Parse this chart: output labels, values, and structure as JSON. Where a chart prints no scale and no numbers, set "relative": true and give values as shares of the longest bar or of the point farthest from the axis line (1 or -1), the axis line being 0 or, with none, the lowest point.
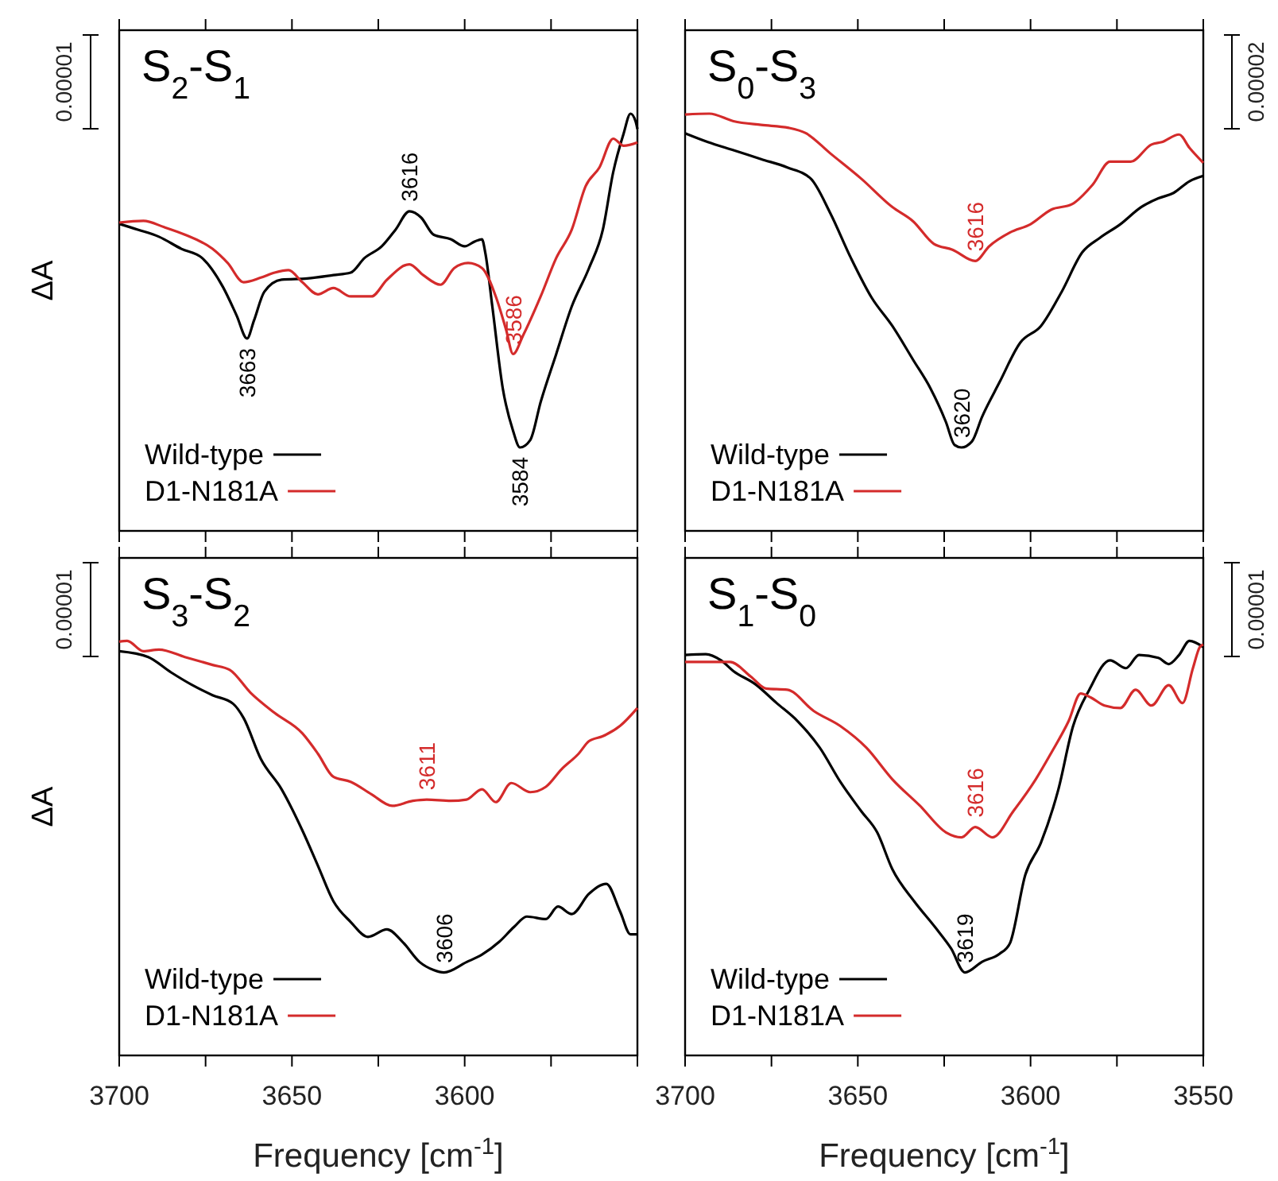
{
  "chart_data": [
    {
      "type": "line",
      "title": "S$_{2}$-S$_{1}$",
      "ylabel": "ΔA",
      "relative": true,
      "xlim": [
        3700,
        3550
      ],
      "xticks": [
        3700,
        {
          "value": 3675,
          "label": null
        },
        3650,
        {
          "value": 3625,
          "label": null
        },
        3600,
        {
          "value": 3575,
          "label": null
        },
        {
          "value": 3550,
          "label": null
        }
      ],
      "tick_labels": false,
      "legend": "bottom left",
      "series": [
        {
          "name": "Wild-type",
          "color": "#000000",
          "x": [
            3700,
            3694.6,
            3688.5,
            3682,
            3676,
            3670,
            3666,
            3663,
            3661,
            3658,
            3653,
            3645.6,
            3638,
            3633,
            3629,
            3624,
            3620,
            3616,
            3612.6,
            3609,
            3604,
            3600,
            3597,
            3595,
            3594,
            3592,
            3589,
            3586,
            3584,
            3581,
            3578,
            3573.5,
            3569,
            3564,
            3560,
            3557,
            3554,
            3552,
            3550.5,
            3550
          ],
          "values": [
            0.736,
            0.722,
            0.705,
            0.676,
            0.654,
            0.585,
            0.516,
            0.461,
            0.504,
            0.573,
            0.602,
            0.605,
            0.613,
            0.619,
            0.654,
            0.682,
            0.722,
            0.766,
            0.751,
            0.71,
            0.699,
            0.682,
            0.694,
            0.699,
            0.665,
            0.538,
            0.343,
            0.24,
            0.2,
            0.218,
            0.309,
            0.424,
            0.538,
            0.63,
            0.722,
            0.86,
            0.952,
            1,
            0.981,
            0.963
          ]
        },
        {
          "name": "D1-N181A",
          "color": "#d42b2b",
          "x": [
            3700,
            3693,
            3687,
            3681,
            3673,
            3668.6,
            3664,
            3659,
            3655,
            3651,
            3647,
            3642.5,
            3638,
            3633,
            3627,
            3622.5,
            3616,
            3612,
            3607,
            3603,
            3599,
            3595,
            3591,
            3588,
            3586,
            3583,
            3578,
            3573.5,
            3569,
            3565,
            3561,
            3557,
            3554,
            3550
          ],
          "values": [
            0.739,
            0.743,
            0.728,
            0.71,
            0.676,
            0.642,
            0.596,
            0.607,
            0.619,
            0.625,
            0.596,
            0.567,
            0.582,
            0.562,
            0.562,
            0.602,
            0.639,
            0.613,
            0.59,
            0.63,
            0.642,
            0.63,
            0.562,
            0.482,
            0.424,
            0.47,
            0.562,
            0.654,
            0.722,
            0.826,
            0.871,
            0.94,
            0.923,
            0.931
          ]
        }
      ],
      "annotations": [
        "0.00001",
        {
          "text": "3663",
          "x": 3663,
          "y": 0.461
        },
        {
          "text": "3616",
          "x": 3616,
          "y": 0.766
        },
        {
          "text": "3586",
          "x": 3586,
          "y": 0.424
        },
        {
          "text": "3584",
          "x": 3584,
          "y": 0.2
        }
      ]
    },
    {
      "type": "line",
      "title": "S$_{0}$-S$_{3}$",
      "relative": true,
      "xlim": [
        3700,
        3550
      ],
      "xticks": [
        3700,
        {
          "value": 3675,
          "label": null
        },
        3650,
        {
          "value": 3625,
          "label": null
        },
        3600,
        {
          "value": 3575,
          "label": null
        },
        3550
      ],
      "tick_labels": false,
      "legend": "bottom left",
      "series": [
        {
          "name": "Wild-type",
          "color": "#000000",
          "x": [
            3700,
            3693.4,
            3685.8,
            3678,
            3670.4,
            3663.6,
            3658,
            3652,
            3646,
            3640,
            3634,
            3629,
            3624.5,
            3622,
            3620,
            3617,
            3614,
            3609,
            3603,
            3597,
            3591,
            3585,
            3580,
            3574,
            3568,
            3563,
            3558.6,
            3554,
            3550
          ],
          "values": [
            0.953,
            0.932,
            0.912,
            0.891,
            0.871,
            0.844,
            0.762,
            0.654,
            0.559,
            0.491,
            0.41,
            0.342,
            0.261,
            0.206,
            0.2,
            0.214,
            0.274,
            0.356,
            0.451,
            0.491,
            0.573,
            0.668,
            0.702,
            0.735,
            0.776,
            0.797,
            0.81,
            0.838,
            0.851
          ]
        },
        {
          "name": "D1-N181A",
          "color": "#d42b2b",
          "x": [
            3700,
            3693,
            3686,
            3678,
            3670,
            3665,
            3658,
            3649,
            3640,
            3634,
            3628,
            3622.6,
            3616,
            3612,
            3606,
            3600,
            3594,
            3588,
            3582,
            3577,
            3571,
            3565,
            3562,
            3557,
            3554,
            3550
          ],
          "values": [
            0.998,
            1,
            0.982,
            0.973,
            0.966,
            0.953,
            0.905,
            0.844,
            0.776,
            0.742,
            0.688,
            0.674,
            0.647,
            0.682,
            0.715,
            0.735,
            0.77,
            0.783,
            0.83,
            0.885,
            0.885,
            0.926,
            0.932,
            0.95,
            0.918,
            0.882
          ]
        }
      ],
      "annotations": [
        "0.00002",
        {
          "text": "3616",
          "x": 3616,
          "y": 0.647
        },
        {
          "text": "3620",
          "x": 3620,
          "y": 0.2
        }
      ]
    },
    {
      "type": "line",
      "title": "S$_{3}$-S$_{2}$",
      "ylabel": "ΔA",
      "xlabel": "Frequency [cm$^{-1}$]",
      "relative": true,
      "xlim": [
        3700,
        3550
      ],
      "xticks": [
        3700,
        {
          "value": 3675,
          "label": null
        },
        3650,
        {
          "value": 3625,
          "label": null
        },
        3600,
        {
          "value": 3575,
          "label": null
        },
        {
          "value": 3550,
          "label": null
        }
      ],
      "tick_labels": "x",
      "legend": "bottom left",
      "series": [
        {
          "name": "Wild-type",
          "color": "#000000",
          "x": [
            3700,
            3691.6,
            3685,
            3679,
            3673,
            3667,
            3664,
            3659,
            3653,
            3647,
            3642.5,
            3638,
            3633,
            3628,
            3622.5,
            3618,
            3613,
            3609,
            3606,
            3599.5,
            3595,
            3590,
            3585.7,
            3582,
            3576.5,
            3573,
            3569,
            3564,
            3559,
            3555,
            3552,
            3550
          ],
          "values": [
            0.975,
            0.961,
            0.924,
            0.894,
            0.869,
            0.848,
            0.814,
            0.715,
            0.642,
            0.543,
            0.458,
            0.372,
            0.322,
            0.286,
            0.304,
            0.274,
            0.225,
            0.206,
            0.2,
            0.225,
            0.243,
            0.274,
            0.31,
            0.335,
            0.329,
            0.359,
            0.341,
            0.39,
            0.414,
            0.347,
            0.292,
            0.292
          ]
        },
        {
          "name": "D1-N181A",
          "color": "#d42b2b",
          "x": [
            3700,
            3697.7,
            3693,
            3688.5,
            3681,
            3673,
            3668,
            3662,
            3655,
            3647,
            3642.5,
            3638,
            3633,
            3627,
            3621,
            3615,
            3611,
            3604,
            3599.5,
            3595,
            3591,
            3586.5,
            3581,
            3576.5,
            3572,
            3567,
            3564,
            3560,
            3555,
            3550
          ],
          "values": [
            0.998,
            1,
            0.975,
            0.979,
            0.961,
            0.942,
            0.93,
            0.875,
            0.826,
            0.777,
            0.728,
            0.672,
            0.66,
            0.63,
            0.602,
            0.614,
            0.617,
            0.614,
            0.617,
            0.642,
            0.611,
            0.657,
            0.635,
            0.648,
            0.69,
            0.728,
            0.758,
            0.77,
            0.795,
            0.838
          ]
        }
      ],
      "annotations": [
        "0.00001",
        {
          "text": "3611",
          "x": 3611,
          "y": 0.617
        },
        {
          "text": "3606",
          "x": 3606,
          "y": 0.2
        }
      ]
    },
    {
      "type": "line",
      "title": "S$_{1}$-S$_{0}$",
      "xlabel": "Frequency [cm$^{-1}$]",
      "relative": true,
      "xlim": [
        3700,
        3550
      ],
      "xticks": [
        3700,
        {
          "value": 3675,
          "label": null
        },
        3650,
        {
          "value": 3625,
          "label": null
        },
        3600,
        {
          "value": 3575,
          "label": null
        },
        3550
      ],
      "tick_labels": "x",
      "legend": "bottom left",
      "series": [
        {
          "name": "Wild-type",
          "color": "#000000",
          "x": [
            3700,
            3694,
            3689.6,
            3686,
            3679.6,
            3673.5,
            3667.4,
            3661,
            3655,
            3649,
            3644.4,
            3640,
            3633.7,
            3627.6,
            3623,
            3619,
            3614,
            3609,
            3606,
            3601.5,
            3597,
            3592,
            3587.7,
            3583,
            3577,
            3572.4,
            3568.6,
            3563,
            3560,
            3557,
            3554,
            3550
          ],
          "values": [
            0.966,
            0.968,
            0.953,
            0.927,
            0.895,
            0.85,
            0.806,
            0.742,
            0.659,
            0.589,
            0.538,
            0.449,
            0.372,
            0.309,
            0.258,
            0.2,
            0.226,
            0.245,
            0.27,
            0.436,
            0.513,
            0.64,
            0.794,
            0.882,
            0.953,
            0.934,
            0.966,
            0.959,
            0.944,
            0.966,
            1,
            0.985
          ]
        },
        {
          "name": "D1-N181A",
          "color": "#d42b2b",
          "x": [
            3700,
            3693.4,
            3687,
            3681,
            3676.6,
            3670.4,
            3662.8,
            3655,
            3647.5,
            3640,
            3632,
            3624.5,
            3620,
            3616,
            3611,
            3605,
            3598.5,
            3594,
            3589,
            3585.5,
            3582.5,
            3578.6,
            3574,
            3569.6,
            3565,
            3560,
            3556,
            3553,
            3551,
            3550
          ],
          "values": [
            0.949,
            0.949,
            0.949,
            0.914,
            0.885,
            0.882,
            0.831,
            0.794,
            0.742,
            0.666,
            0.602,
            0.538,
            0.526,
            0.551,
            0.526,
            0.589,
            0.666,
            0.73,
            0.806,
            0.873,
            0.863,
            0.844,
            0.838,
            0.882,
            0.844,
            0.893,
            0.85,
            0.934,
            0.985,
            0.991
          ]
        }
      ],
      "annotations": [
        "0.00001",
        {
          "text": "3616",
          "x": 3616,
          "y": 0.551
        },
        {
          "text": "3619",
          "x": 3619,
          "y": 0.2
        }
      ]
    }
  ]
}
